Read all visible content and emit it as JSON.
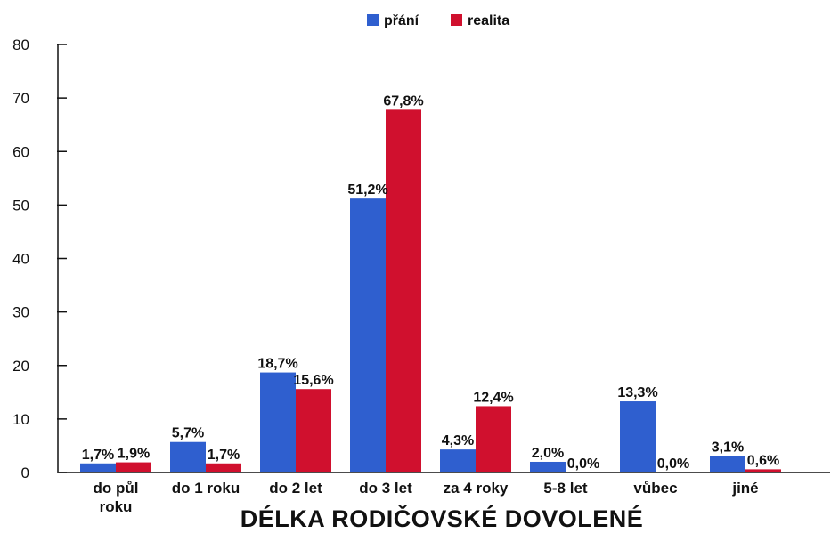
{
  "chart_data": {
    "type": "bar",
    "title": "",
    "xlabel": "DÉLKA RODIČOVSKÉ DOVOLENÉ",
    "ylabel": "",
    "ylim": [
      0,
      80
    ],
    "yticks": [
      "0",
      "10",
      "20",
      "30",
      "40",
      "50",
      "60",
      "70",
      "80"
    ],
    "grid": false,
    "legend_position": "top-center",
    "categories": [
      [
        "do půl",
        "roku"
      ],
      [
        "do 1 roku"
      ],
      [
        "do 2 let"
      ],
      [
        "do 3 let"
      ],
      [
        "za 4 roky"
      ],
      [
        "5-8 let"
      ],
      [
        "vůbec"
      ],
      [
        "jiné"
      ]
    ],
    "series": [
      {
        "name": "přání",
        "color": "#2f5fcf",
        "values": [
          1.7,
          5.7,
          18.7,
          51.2,
          4.3,
          2.0,
          13.3,
          3.1
        ],
        "labels": [
          "1,7%",
          "5,7%",
          "18,7%",
          "51,2%",
          "4,3%",
          "2,0%",
          "13,3%",
          "3,1%"
        ]
      },
      {
        "name": "realita",
        "color": "#d0102e",
        "values": [
          1.9,
          1.7,
          15.6,
          67.8,
          12.4,
          0.0,
          0.0,
          0.6
        ],
        "labels": [
          "1,9%",
          "1,7%",
          "15,6%",
          "67,8%",
          "12,4%",
          "0,0%",
          "0,0%",
          "0,6%"
        ]
      }
    ]
  }
}
